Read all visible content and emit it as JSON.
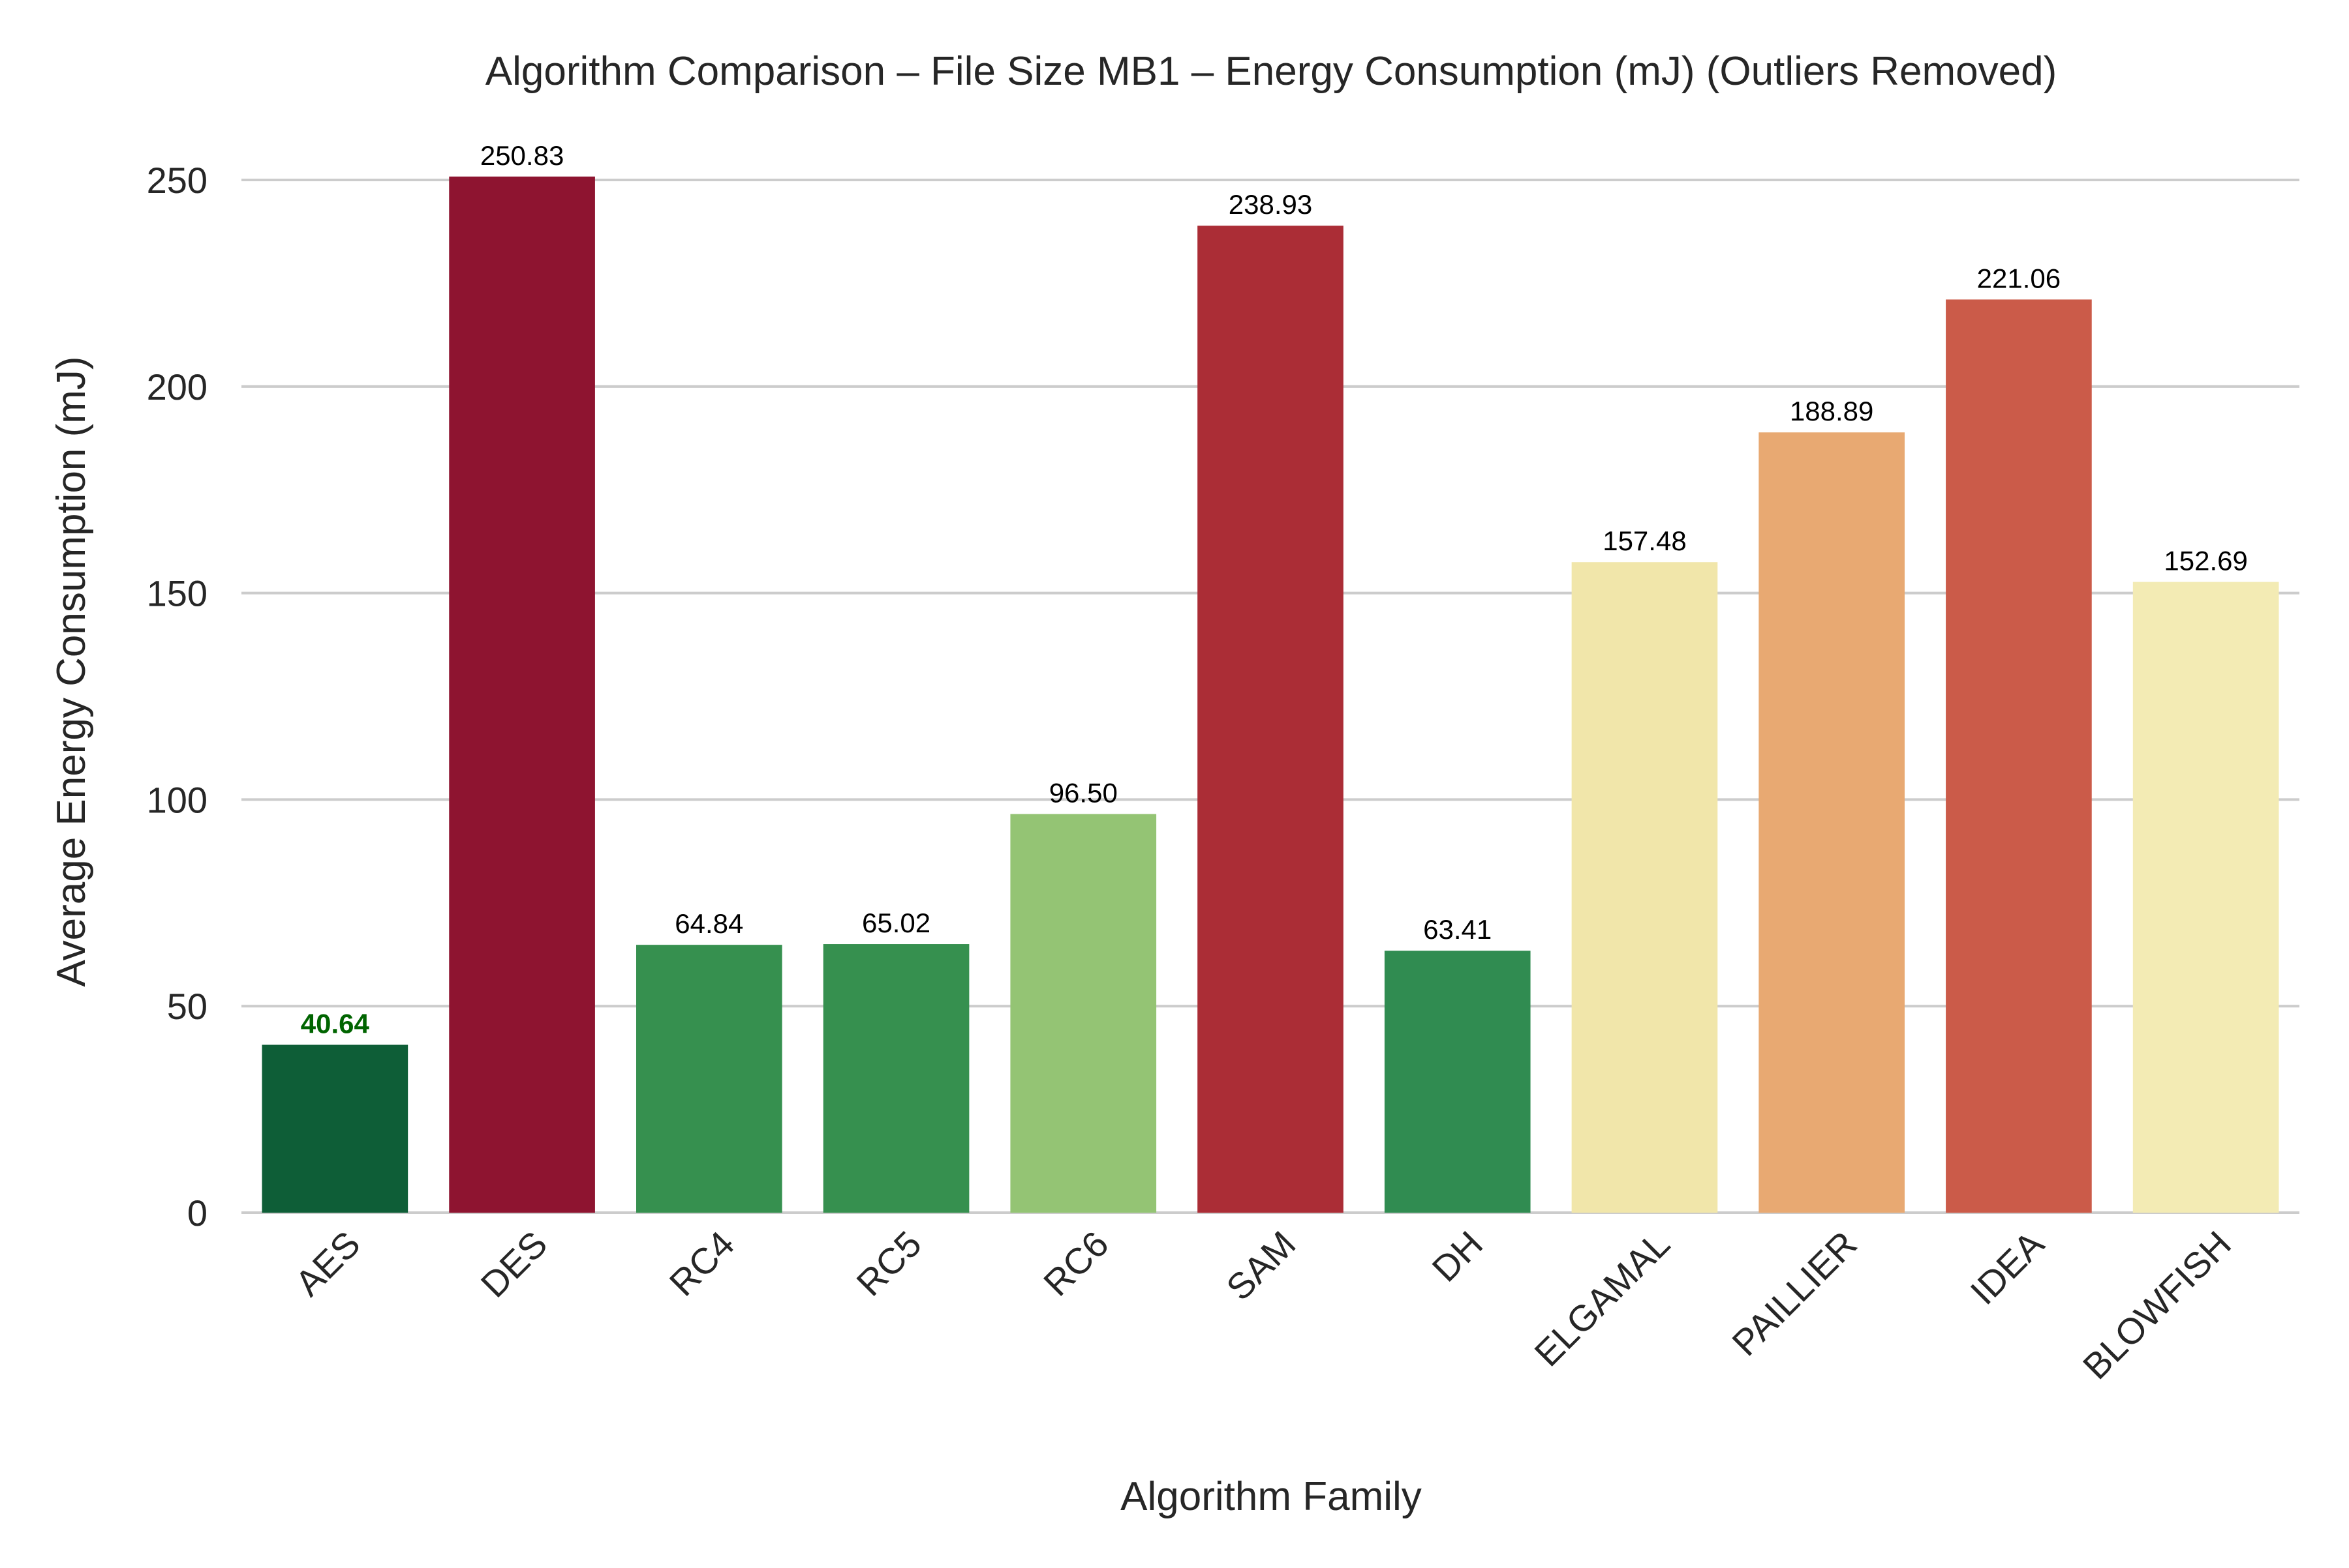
{
  "chart_data": {
    "type": "bar",
    "title": "Algorithm Comparison – File Size MB1 – Energy Consumption (mJ) (Outliers Removed)",
    "xlabel": "Algorithm Family",
    "ylabel": "Average Energy Consumption (mJ)",
    "ylim": [
      0,
      262
    ],
    "yticks": [
      0,
      50,
      100,
      150,
      200,
      250
    ],
    "grid": "horizontal",
    "categories": [
      "AES",
      "DES",
      "RC4",
      "RC5",
      "RC6",
      "SAM",
      "DH",
      "ELGAMAL",
      "PAILLIER",
      "IDEA",
      "BLOWFISH"
    ],
    "values": [
      40.64,
      250.83,
      64.84,
      65.02,
      96.5,
      238.93,
      63.41,
      157.48,
      188.89,
      221.06,
      152.69
    ],
    "data_labels": [
      "40.64",
      "250.83",
      "64.84",
      "65.02",
      "96.50",
      "238.93",
      "63.41",
      "157.48",
      "188.89",
      "221.06",
      "152.69"
    ],
    "colors": [
      "#0e5e37",
      "#8e1430",
      "#36904f",
      "#36904f",
      "#94c474",
      "#ab2d36",
      "#308c51",
      "#f1e6aa",
      "#e8a972",
      "#cb5b49",
      "#f3ebb4"
    ],
    "highlight_index": 0,
    "highlight_label_color": "#006400"
  }
}
